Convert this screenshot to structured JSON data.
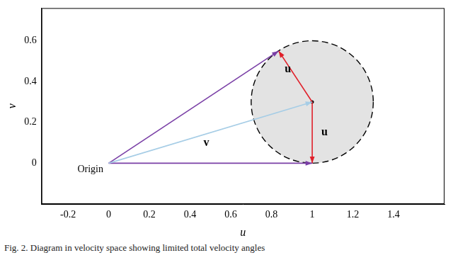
{
  "chart_data": {
    "type": "scatter",
    "caption": "Fig. 2.    Diagram in velocity space showing limited total velocity angles",
    "x_label": "u",
    "y_label": "v",
    "xlim": [
      -0.33,
      1.65
    ],
    "ylim": [
      -0.2,
      0.76
    ],
    "xticks": [
      -0.2,
      0,
      0.2,
      0.4,
      0.6,
      0.8,
      1,
      1.2,
      1.4
    ],
    "yticks": [
      0,
      0.2,
      0.4,
      0.6
    ],
    "grid": false,
    "circle": {
      "center": [
        1,
        0.3
      ],
      "radius": 0.3,
      "color": "#e3e3e3",
      "line_style": "dashed"
    },
    "arrows": [
      {
        "from": [
          0,
          0
        ],
        "to": [
          1,
          0.3
        ],
        "color": "#a6cde6"
      },
      {
        "from": [
          0,
          0
        ],
        "to": [
          0.835,
          0.55
        ],
        "color": "#7a3fa6"
      },
      {
        "from": [
          0,
          0
        ],
        "to": [
          1,
          0
        ],
        "color": "#7a3fa6"
      },
      {
        "from": [
          1,
          0.3
        ],
        "to": [
          0.835,
          0.55
        ],
        "color": "#e0202a"
      },
      {
        "from": [
          1,
          0.3
        ],
        "to": [
          1,
          0
        ],
        "color": "#e0202a"
      }
    ],
    "annotations": [
      {
        "text": "v",
        "at": [
          0.48,
          0.1
        ]
      },
      {
        "text": "u",
        "at": [
          0.88,
          0.46
        ]
      },
      {
        "text": "u",
        "at": [
          1.06,
          0.15
        ]
      },
      {
        "text": "Origin",
        "at": [
          -0.09,
          -0.03
        ]
      }
    ]
  }
}
